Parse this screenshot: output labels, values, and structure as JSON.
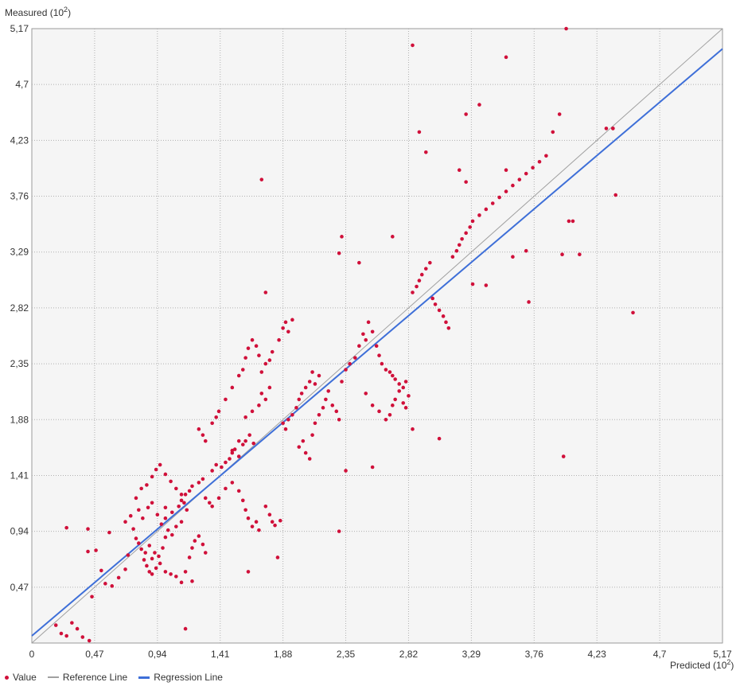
{
  "chart_data": {
    "type": "scatter",
    "ylabel": "Measured (10",
    "ylabel_exp": "2",
    "xlabel": "Predicted (10",
    "xlabel_exp": "2",
    "label_close": ")",
    "xlim": [
      0,
      5.17
    ],
    "ylim": [
      0,
      5.17
    ],
    "x_ticks": [
      "0",
      "0,47",
      "0,94",
      "1,41",
      "1,88",
      "2,35",
      "2,82",
      "3,29",
      "3,76",
      "4,23",
      "4,7",
      "5,17"
    ],
    "x_tick_values": [
      0,
      0.47,
      0.94,
      1.41,
      1.88,
      2.35,
      2.82,
      3.29,
      3.76,
      4.23,
      4.7,
      5.17
    ],
    "y_ticks": [
      "0,47",
      "0,94",
      "1,41",
      "1,88",
      "2,35",
      "2,82",
      "3,29",
      "3,76",
      "4,23",
      "4,7",
      "5,17"
    ],
    "y_tick_values": [
      0.47,
      0.94,
      1.41,
      1.88,
      2.35,
      2.82,
      3.29,
      3.76,
      4.23,
      4.7,
      5.17
    ],
    "grid": true,
    "legend_position": "bottom-left",
    "legend": [
      "Value",
      "Reference Line",
      "Regression Line"
    ],
    "colors": {
      "value": "#d0103a",
      "reference": "#a0a0a0",
      "regression": "#3e6fd8",
      "plot_bg": "#f5f5f5",
      "grid": "#b0b0b0"
    },
    "reference_line": {
      "x1": 0,
      "y1": 0,
      "x2": 5.17,
      "y2": 5.17
    },
    "regression_line": {
      "x1": 0,
      "y1": 0.06,
      "x2": 5.17,
      "y2": 5.0
    },
    "series": [
      {
        "name": "Value",
        "points": [
          [
            0.18,
            0.15
          ],
          [
            0.22,
            0.08
          ],
          [
            0.26,
            0.06
          ],
          [
            0.3,
            0.17
          ],
          [
            0.34,
            0.12
          ],
          [
            0.38,
            0.05
          ],
          [
            0.43,
            0.02
          ],
          [
            0.45,
            0.39
          ],
          [
            0.42,
            0.77
          ],
          [
            0.48,
            0.78
          ],
          [
            0.52,
            0.61
          ],
          [
            0.58,
            0.93
          ],
          [
            0.26,
            0.97
          ],
          [
            0.42,
            0.96
          ],
          [
            0.55,
            0.5
          ],
          [
            0.6,
            0.48
          ],
          [
            0.65,
            0.55
          ],
          [
            0.7,
            0.62
          ],
          [
            0.72,
            0.74
          ],
          [
            0.78,
            0.88
          ],
          [
            0.8,
            0.84
          ],
          [
            0.82,
            0.79
          ],
          [
            0.85,
            0.76
          ],
          [
            0.88,
            0.82
          ],
          [
            0.9,
            0.71
          ],
          [
            0.92,
            0.76
          ],
          [
            0.95,
            0.73
          ],
          [
            0.98,
            0.8
          ],
          [
            1.0,
            0.89
          ],
          [
            1.02,
            0.95
          ],
          [
            1.05,
            0.91
          ],
          [
            0.84,
            0.7
          ],
          [
            0.86,
            0.65
          ],
          [
            0.88,
            0.6
          ],
          [
            0.9,
            0.58
          ],
          [
            0.93,
            0.63
          ],
          [
            0.96,
            0.67
          ],
          [
            1.0,
            0.6
          ],
          [
            1.04,
            0.58
          ],
          [
            1.08,
            0.56
          ],
          [
            1.12,
            0.51
          ],
          [
            1.15,
            0.6
          ],
          [
            1.18,
            0.72
          ],
          [
            1.2,
            0.8
          ],
          [
            1.22,
            0.86
          ],
          [
            1.25,
            0.9
          ],
          [
            1.28,
            0.83
          ],
          [
            1.3,
            0.76
          ],
          [
            1.0,
            1.05
          ],
          [
            1.05,
            1.1
          ],
          [
            1.1,
            1.15
          ],
          [
            1.12,
            1.2
          ],
          [
            1.15,
            1.25
          ],
          [
            1.18,
            1.28
          ],
          [
            1.2,
            1.32
          ],
          [
            1.25,
            1.35
          ],
          [
            1.28,
            1.38
          ],
          [
            1.3,
            1.22
          ],
          [
            1.33,
            1.18
          ],
          [
            1.35,
            1.15
          ],
          [
            0.78,
            1.22
          ],
          [
            0.82,
            1.3
          ],
          [
            0.86,
            1.33
          ],
          [
            0.9,
            1.4
          ],
          [
            0.93,
            1.46
          ],
          [
            0.96,
            1.5
          ],
          [
            1.0,
            1.42
          ],
          [
            1.04,
            1.36
          ],
          [
            1.08,
            1.3
          ],
          [
            1.12,
            1.25
          ],
          [
            1.14,
            1.18
          ],
          [
            1.16,
            1.12
          ],
          [
            0.7,
            1.02
          ],
          [
            0.74,
            1.07
          ],
          [
            0.76,
            0.96
          ],
          [
            0.8,
            1.12
          ],
          [
            0.83,
            1.05
          ],
          [
            0.87,
            1.14
          ],
          [
            0.9,
            1.18
          ],
          [
            0.94,
            1.08
          ],
          [
            0.97,
            1.0
          ],
          [
            1.0,
            1.14
          ],
          [
            1.08,
            0.98
          ],
          [
            1.12,
            1.02
          ],
          [
            1.35,
            1.45
          ],
          [
            1.38,
            1.5
          ],
          [
            1.42,
            1.48
          ],
          [
            1.45,
            1.52
          ],
          [
            1.48,
            1.55
          ],
          [
            1.5,
            1.6
          ],
          [
            1.52,
            1.63
          ],
          [
            1.55,
            1.57
          ],
          [
            1.58,
            1.67
          ],
          [
            1.6,
            1.7
          ],
          [
            1.63,
            1.75
          ],
          [
            1.66,
            1.68
          ],
          [
            1.4,
            1.22
          ],
          [
            1.45,
            1.3
          ],
          [
            1.5,
            1.35
          ],
          [
            1.55,
            1.28
          ],
          [
            1.58,
            1.2
          ],
          [
            1.6,
            1.12
          ],
          [
            1.62,
            1.05
          ],
          [
            1.65,
            0.98
          ],
          [
            1.68,
            1.02
          ],
          [
            1.7,
            0.95
          ],
          [
            1.75,
            1.15
          ],
          [
            1.78,
            1.08
          ],
          [
            1.8,
            1.02
          ],
          [
            1.82,
            0.99
          ],
          [
            1.84,
            0.72
          ],
          [
            1.86,
            1.03
          ],
          [
            1.5,
            1.62
          ],
          [
            1.55,
            1.7
          ],
          [
            1.6,
            1.9
          ],
          [
            1.65,
            1.95
          ],
          [
            1.7,
            2.0
          ],
          [
            1.72,
            2.1
          ],
          [
            1.75,
            2.05
          ],
          [
            1.78,
            2.15
          ],
          [
            1.25,
            1.8
          ],
          [
            1.28,
            1.75
          ],
          [
            1.3,
            1.7
          ],
          [
            1.35,
            1.85
          ],
          [
            1.38,
            1.9
          ],
          [
            1.4,
            1.95
          ],
          [
            1.45,
            2.05
          ],
          [
            1.5,
            2.15
          ],
          [
            1.55,
            2.25
          ],
          [
            1.58,
            2.3
          ],
          [
            1.6,
            2.4
          ],
          [
            1.62,
            2.48
          ],
          [
            1.65,
            2.55
          ],
          [
            1.68,
            2.5
          ],
          [
            1.7,
            2.42
          ],
          [
            1.72,
            2.28
          ],
          [
            1.75,
            2.35
          ],
          [
            1.78,
            2.38
          ],
          [
            1.8,
            2.45
          ],
          [
            1.85,
            2.55
          ],
          [
            1.88,
            2.65
          ],
          [
            1.9,
            2.7
          ],
          [
            1.92,
            2.62
          ],
          [
            1.95,
            2.72
          ],
          [
            1.88,
            1.85
          ],
          [
            1.9,
            1.8
          ],
          [
            1.92,
            1.88
          ],
          [
            1.95,
            1.92
          ],
          [
            1.98,
            1.98
          ],
          [
            2.0,
            2.05
          ],
          [
            2.02,
            2.1
          ],
          [
            2.05,
            2.15
          ],
          [
            2.08,
            2.2
          ],
          [
            2.1,
            2.28
          ],
          [
            2.12,
            2.18
          ],
          [
            2.15,
            2.25
          ],
          [
            2.0,
            1.65
          ],
          [
            2.03,
            1.7
          ],
          [
            2.05,
            1.6
          ],
          [
            2.08,
            1.55
          ],
          [
            2.1,
            1.75
          ],
          [
            2.12,
            1.85
          ],
          [
            2.15,
            1.92
          ],
          [
            2.18,
            1.98
          ],
          [
            2.2,
            2.05
          ],
          [
            2.22,
            2.12
          ],
          [
            2.25,
            2.0
          ],
          [
            2.28,
            1.95
          ],
          [
            2.3,
            1.88
          ],
          [
            2.32,
            2.2
          ],
          [
            2.35,
            2.3
          ],
          [
            2.38,
            2.35
          ],
          [
            2.42,
            2.4
          ],
          [
            2.45,
            2.5
          ],
          [
            2.48,
            2.6
          ],
          [
            2.5,
            2.55
          ],
          [
            2.52,
            2.7
          ],
          [
            2.55,
            2.62
          ],
          [
            2.58,
            2.5
          ],
          [
            2.6,
            2.42
          ],
          [
            2.62,
            2.35
          ],
          [
            2.65,
            2.3
          ],
          [
            2.68,
            2.28
          ],
          [
            2.7,
            2.25
          ],
          [
            2.72,
            2.22
          ],
          [
            2.75,
            2.18
          ],
          [
            2.78,
            2.15
          ],
          [
            2.8,
            2.2
          ],
          [
            2.5,
            2.1
          ],
          [
            2.55,
            2.0
          ],
          [
            2.6,
            1.95
          ],
          [
            2.65,
            1.88
          ],
          [
            2.68,
            1.92
          ],
          [
            2.7,
            2.0
          ],
          [
            2.72,
            2.05
          ],
          [
            2.75,
            2.12
          ],
          [
            2.78,
            2.02
          ],
          [
            2.8,
            1.98
          ],
          [
            2.82,
            2.08
          ],
          [
            2.85,
            2.95
          ],
          [
            2.88,
            3.0
          ],
          [
            2.9,
            3.05
          ],
          [
            2.92,
            3.1
          ],
          [
            2.95,
            3.15
          ],
          [
            2.98,
            3.2
          ],
          [
            3.0,
            2.9
          ],
          [
            3.02,
            2.85
          ],
          [
            3.05,
            2.8
          ],
          [
            3.08,
            2.75
          ],
          [
            3.1,
            2.7
          ],
          [
            3.12,
            2.65
          ],
          [
            3.15,
            3.25
          ],
          [
            3.18,
            3.3
          ],
          [
            3.2,
            3.35
          ],
          [
            3.22,
            3.4
          ],
          [
            3.25,
            3.45
          ],
          [
            3.28,
            3.5
          ],
          [
            3.3,
            3.55
          ],
          [
            3.35,
            3.6
          ],
          [
            3.4,
            3.65
          ],
          [
            3.45,
            3.7
          ],
          [
            3.5,
            3.75
          ],
          [
            3.55,
            3.8
          ],
          [
            3.6,
            3.85
          ],
          [
            3.65,
            3.9
          ],
          [
            3.7,
            3.95
          ],
          [
            3.75,
            4.0
          ],
          [
            3.8,
            4.05
          ],
          [
            2.7,
            3.42
          ],
          [
            2.85,
            1.8
          ],
          [
            3.05,
            1.72
          ],
          [
            2.9,
            4.3
          ],
          [
            2.95,
            4.13
          ],
          [
            2.85,
            5.03
          ],
          [
            3.55,
            4.93
          ],
          [
            4.0,
            5.17
          ],
          [
            4.3,
            4.33
          ],
          [
            4.35,
            4.33
          ],
          [
            4.1,
            3.27
          ],
          [
            4.37,
            3.77
          ],
          [
            4.5,
            2.78
          ],
          [
            3.98,
            1.57
          ],
          [
            3.95,
            4.45
          ],
          [
            3.9,
            4.3
          ],
          [
            3.85,
            4.1
          ],
          [
            3.7,
            3.3
          ],
          [
            3.72,
            2.87
          ],
          [
            3.6,
            3.25
          ],
          [
            3.55,
            3.98
          ],
          [
            3.4,
            3.01
          ],
          [
            3.3,
            3.02
          ],
          [
            3.25,
            3.88
          ],
          [
            3.2,
            3.98
          ],
          [
            3.35,
            4.53
          ],
          [
            3.25,
            4.45
          ],
          [
            2.3,
            3.28
          ],
          [
            2.32,
            3.42
          ],
          [
            2.45,
            3.2
          ],
          [
            2.3,
            0.94
          ],
          [
            2.35,
            1.45
          ],
          [
            2.55,
            1.48
          ],
          [
            1.72,
            3.9
          ],
          [
            1.75,
            2.95
          ],
          [
            1.62,
            0.6
          ],
          [
            1.15,
            0.12
          ],
          [
            1.2,
            0.52
          ],
          [
            4.05,
            3.55
          ],
          [
            4.02,
            3.55
          ],
          [
            3.97,
            3.27
          ],
          [
            4.35,
            4.33
          ]
        ]
      }
    ]
  }
}
